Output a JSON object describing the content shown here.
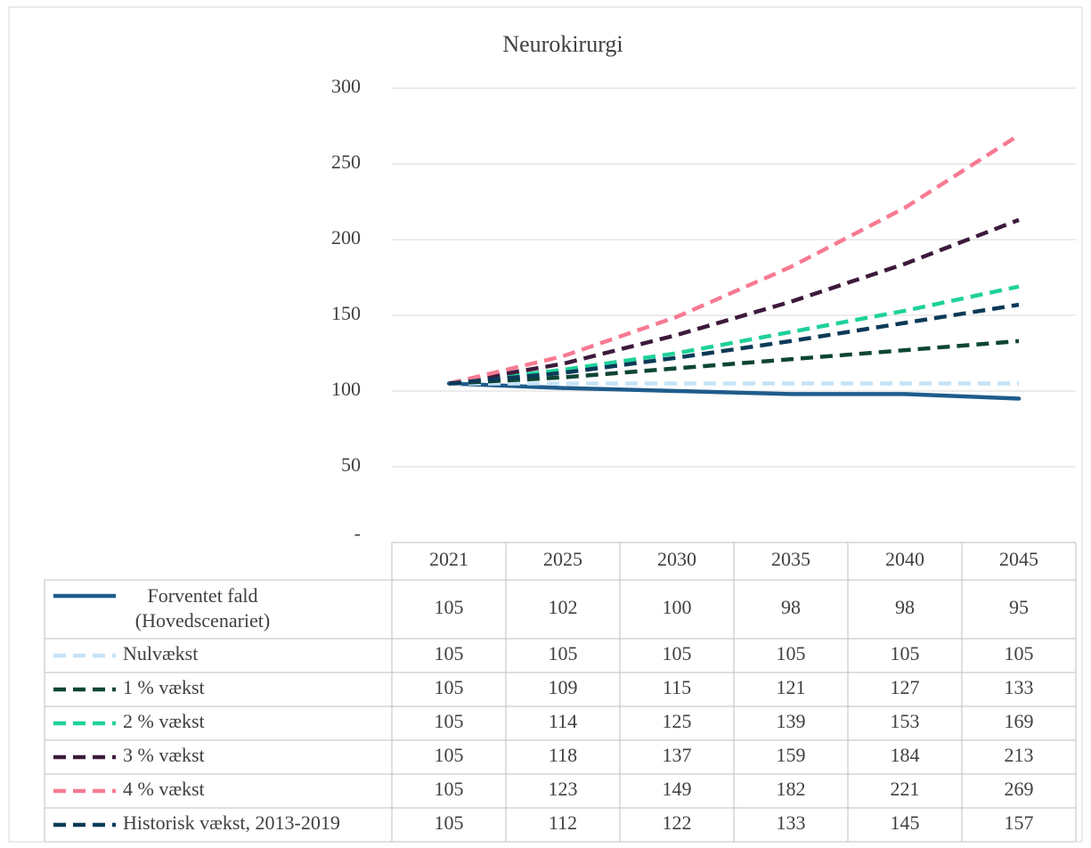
{
  "chart_data": {
    "type": "line",
    "title": "Neurokirurgi",
    "categories": [
      "2021",
      "2025",
      "2030",
      "2035",
      "2040",
      "2045"
    ],
    "ylim": [
      0,
      300
    ],
    "yticks": [
      {
        "value": 0,
        "label": "-"
      },
      50,
      100,
      150,
      200,
      250,
      300
    ],
    "grid": true,
    "series": [
      {
        "name": "Forventet fald (Hovedscenariet)",
        "color": "#1f5c8b",
        "dash": false,
        "values": [
          105,
          102,
          100,
          98,
          98,
          95
        ]
      },
      {
        "name": "Nulvækst",
        "color": "#c5e3f7",
        "dash": true,
        "values": [
          105,
          105,
          105,
          105,
          105,
          105
        ]
      },
      {
        "name": "1 % vækst",
        "color": "#0e4535",
        "dash": true,
        "values": [
          105,
          109,
          115,
          121,
          127,
          133
        ]
      },
      {
        "name": "2 % vækst",
        "color": "#1fd19a",
        "dash": true,
        "values": [
          105,
          114,
          125,
          139,
          153,
          169
        ]
      },
      {
        "name": "3 % vækst",
        "color": "#3c1a3c",
        "dash": true,
        "values": [
          105,
          118,
          137,
          159,
          184,
          213
        ]
      },
      {
        "name": "4 % vækst",
        "color": "#f77a92",
        "dash": true,
        "values": [
          105,
          123,
          149,
          182,
          221,
          269
        ]
      },
      {
        "name": "Historisk vækst, 2013-2019",
        "color": "#0c3a57",
        "dash": true,
        "values": [
          105,
          112,
          122,
          133,
          145,
          157
        ]
      }
    ]
  }
}
